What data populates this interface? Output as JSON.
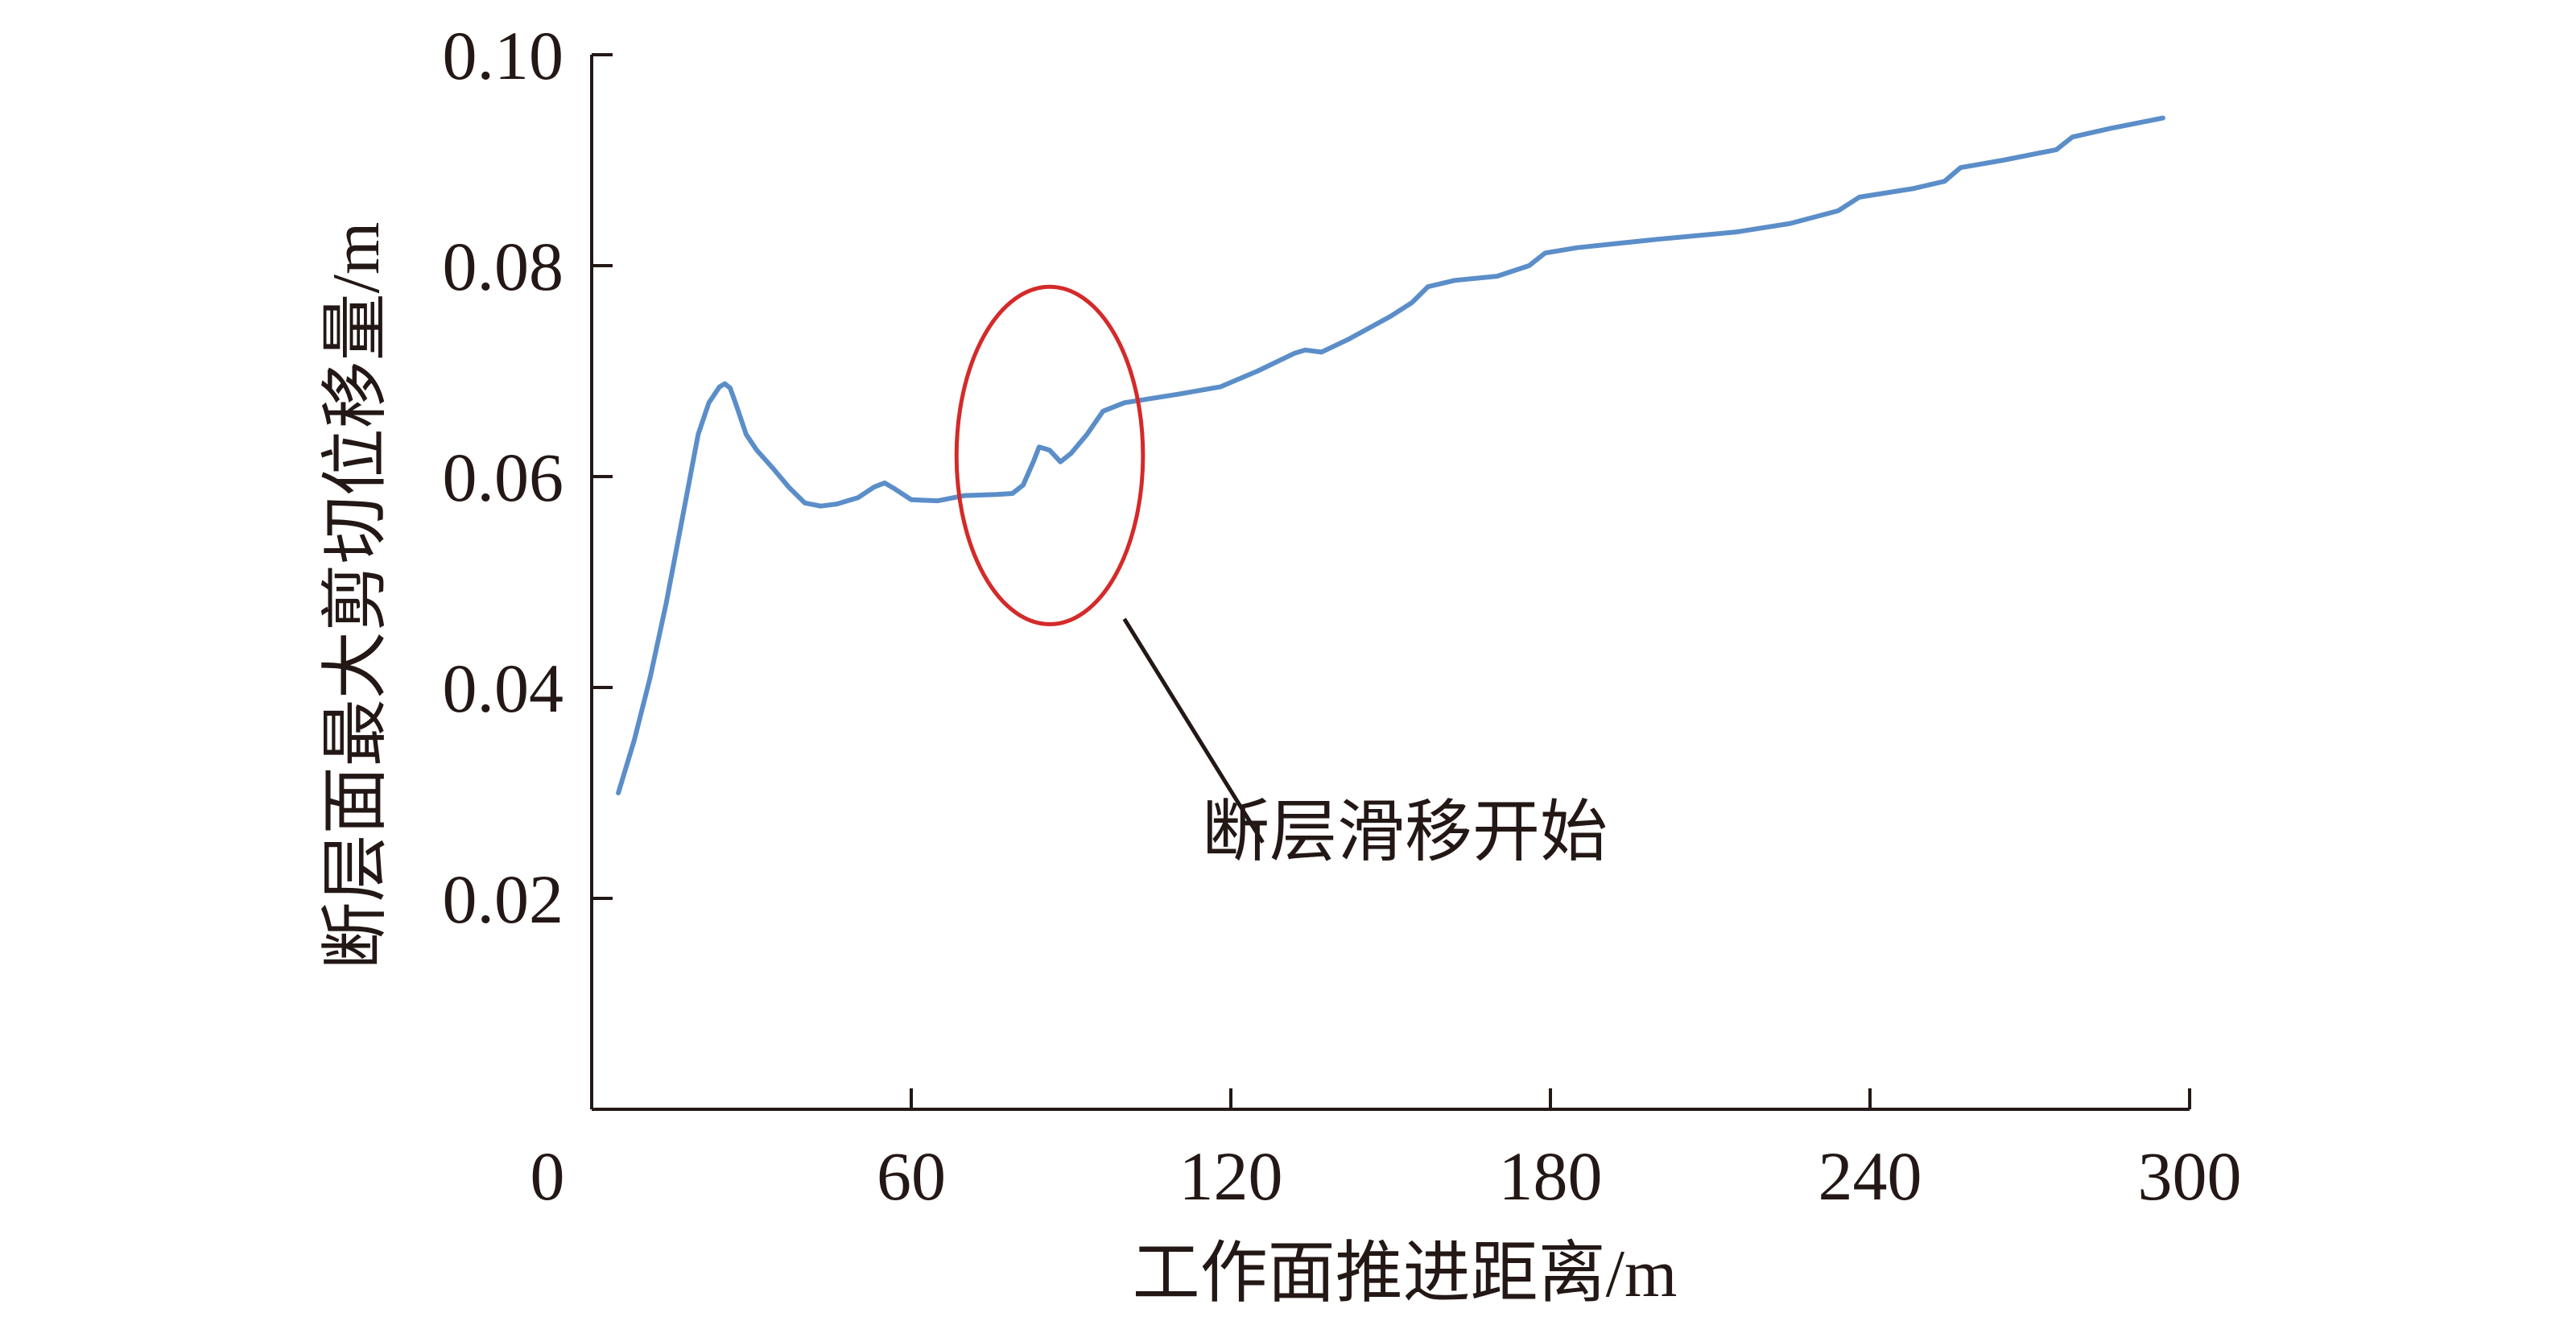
{
  "chart_data": {
    "type": "line",
    "xlabel": "工作面推进距离/m",
    "ylabel": "断层面最大剪切位移量/m",
    "xlim": [
      0,
      300
    ],
    "ylim": [
      0,
      0.1
    ],
    "xticks": [
      {
        "value": 0,
        "label": "0"
      },
      {
        "value": 60,
        "label": "60"
      },
      {
        "value": 120,
        "label": "120"
      },
      {
        "value": 180,
        "label": "180"
      },
      {
        "value": 240,
        "label": "240"
      },
      {
        "value": 300,
        "label": "300"
      }
    ],
    "yticks": [
      {
        "value": 0.02,
        "label": "0.02"
      },
      {
        "value": 0.04,
        "label": "0.04"
      },
      {
        "value": 0.06,
        "label": "0.06"
      },
      {
        "value": 0.08,
        "label": "0.08"
      },
      {
        "value": 0.1,
        "label": "0.10"
      }
    ],
    "grid": false,
    "series": [
      {
        "color": "#5b8ec9",
        "points": [
          [
            5,
            0.03
          ],
          [
            8,
            0.035
          ],
          [
            11,
            0.041
          ],
          [
            14,
            0.048
          ],
          [
            17,
            0.056
          ],
          [
            20,
            0.064
          ],
          [
            22,
            0.067
          ],
          [
            24,
            0.0685
          ],
          [
            25,
            0.0688
          ],
          [
            26,
            0.0684
          ],
          [
            27,
            0.067
          ],
          [
            29,
            0.064
          ],
          [
            31,
            0.0625
          ],
          [
            34,
            0.0608
          ],
          [
            37,
            0.059
          ],
          [
            40,
            0.0575
          ],
          [
            43,
            0.0572
          ],
          [
            46,
            0.0574
          ],
          [
            50,
            0.058
          ],
          [
            53,
            0.059
          ],
          [
            55,
            0.0594
          ],
          [
            57,
            0.0588
          ],
          [
            60,
            0.0578
          ],
          [
            65,
            0.0577
          ],
          [
            70,
            0.0582
          ],
          [
            76,
            0.0583
          ],
          [
            79,
            0.0584
          ],
          [
            81,
            0.0592
          ],
          [
            83,
            0.0615
          ],
          [
            84,
            0.0628
          ],
          [
            86,
            0.0625
          ],
          [
            88,
            0.0614
          ],
          [
            90,
            0.0622
          ],
          [
            93,
            0.064
          ],
          [
            96,
            0.0662
          ],
          [
            100,
            0.067
          ],
          [
            110,
            0.0678
          ],
          [
            118,
            0.0685
          ],
          [
            125,
            0.07
          ],
          [
            132,
            0.0717
          ],
          [
            134,
            0.072
          ],
          [
            137,
            0.0718
          ],
          [
            142,
            0.073
          ],
          [
            150,
            0.0752
          ],
          [
            154,
            0.0765
          ],
          [
            157,
            0.078
          ],
          [
            162,
            0.0786
          ],
          [
            170,
            0.079
          ],
          [
            176,
            0.08
          ],
          [
            179,
            0.0812
          ],
          [
            185,
            0.0817
          ],
          [
            200,
            0.0825
          ],
          [
            215,
            0.0832
          ],
          [
            225,
            0.084
          ],
          [
            234,
            0.0852
          ],
          [
            238,
            0.0865
          ],
          [
            248,
            0.0873
          ],
          [
            254,
            0.088
          ],
          [
            257,
            0.0893
          ],
          [
            265,
            0.09
          ],
          [
            275,
            0.091
          ],
          [
            278,
            0.0922
          ],
          [
            285,
            0.093
          ],
          [
            295,
            0.094
          ]
        ]
      }
    ],
    "annotation": {
      "text": "断层滑移开始",
      "ellipse_color": "#d42a2a",
      "line_color": "#231815",
      "ellipse_center": [
        86,
        0.062
      ],
      "ellipse_rx": 17.5,
      "ellipse_ry": 0.016,
      "line_from": [
        100,
        0.0465
      ],
      "line_to": [
        126,
        0.0253
      ]
    }
  }
}
